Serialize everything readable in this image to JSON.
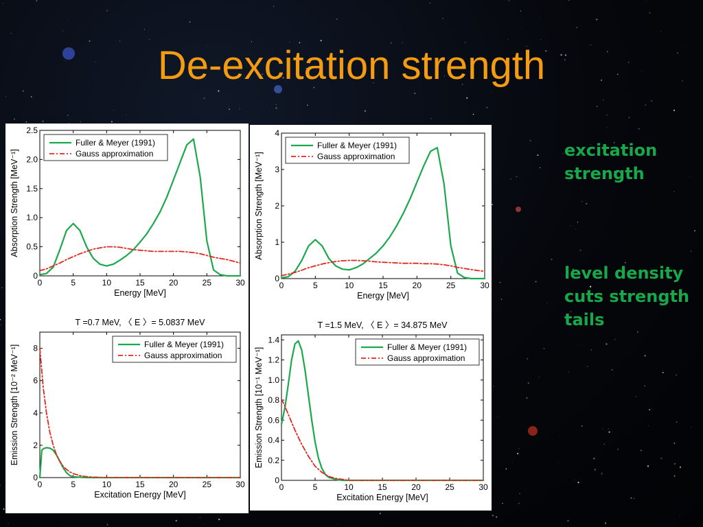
{
  "slide": {
    "title": "De-excitation strength",
    "notes": [
      "excitation\nstrength",
      "level density\ncuts strength\ntails"
    ]
  },
  "colors": {
    "title": "#f39c12",
    "notes": "#16a84a",
    "fuller": "#1aa84c",
    "gauss": "#e3261d"
  },
  "chart_data": [
    {
      "type": "line",
      "xlabel": "Energy [MeV]",
      "ylabel": "Absorption Strength [MeV⁻¹]",
      "xlim": [
        0,
        30
      ],
      "ylim": [
        0,
        2.5
      ],
      "xticks": [
        0,
        5,
        10,
        15,
        20,
        25,
        30
      ],
      "yticks": [
        0,
        0.5,
        1.0,
        1.5,
        2.0,
        2.5
      ],
      "yticklabels": [
        "0",
        "0.5",
        "1.0",
        "1.5",
        "2.0",
        "2.5"
      ],
      "legend": "top-left",
      "series": [
        {
          "name": "Fuller & Meyer (1991)",
          "style": "solid",
          "x": [
            0,
            1,
            2,
            3,
            4,
            5,
            6,
            7,
            8,
            9,
            10,
            11,
            12,
            13,
            14,
            15,
            16,
            17,
            18,
            19,
            20,
            21,
            22,
            23,
            24,
            25,
            26,
            27,
            28,
            29,
            30
          ],
          "y": [
            0.02,
            0.04,
            0.15,
            0.45,
            0.78,
            0.9,
            0.78,
            0.5,
            0.3,
            0.2,
            0.17,
            0.2,
            0.27,
            0.35,
            0.45,
            0.58,
            0.72,
            0.9,
            1.1,
            1.35,
            1.65,
            1.95,
            2.25,
            2.35,
            1.7,
            0.6,
            0.1,
            0.02,
            0.0,
            0.0,
            0.0
          ]
        },
        {
          "name": "Gauss approximation",
          "style": "dashdot",
          "x": [
            0,
            1,
            2,
            3,
            4,
            5,
            6,
            7,
            8,
            9,
            10,
            11,
            12,
            13,
            14,
            15,
            16,
            17,
            18,
            19,
            20,
            21,
            22,
            23,
            24,
            25,
            26,
            27,
            28,
            29,
            30
          ],
          "y": [
            0.09,
            0.12,
            0.17,
            0.22,
            0.28,
            0.33,
            0.38,
            0.42,
            0.46,
            0.48,
            0.5,
            0.5,
            0.49,
            0.47,
            0.45,
            0.44,
            0.43,
            0.42,
            0.42,
            0.42,
            0.42,
            0.42,
            0.41,
            0.4,
            0.38,
            0.35,
            0.32,
            0.3,
            0.28,
            0.25,
            0.22
          ]
        }
      ]
    },
    {
      "type": "line",
      "xlabel": "Energy [MeV]",
      "ylabel": "Absorption Strength [MeV⁻¹]",
      "xlim": [
        0,
        30
      ],
      "ylim": [
        0,
        4
      ],
      "xticks": [
        0,
        5,
        10,
        15,
        20,
        25,
        30
      ],
      "yticks": [
        0,
        1,
        2,
        3,
        4
      ],
      "yticklabels": [
        "0",
        "1",
        "2",
        "3",
        "4"
      ],
      "legend": "top-left",
      "series": [
        {
          "name": "Fuller & Meyer (1991)",
          "style": "solid",
          "x": [
            0,
            1,
            2,
            3,
            4,
            5,
            6,
            7,
            8,
            9,
            10,
            11,
            12,
            13,
            14,
            15,
            16,
            17,
            18,
            19,
            20,
            21,
            22,
            23,
            24,
            25,
            26,
            27,
            28,
            29,
            30
          ],
          "y": [
            0.02,
            0.05,
            0.2,
            0.5,
            0.9,
            1.07,
            0.9,
            0.55,
            0.35,
            0.26,
            0.24,
            0.3,
            0.4,
            0.55,
            0.7,
            0.9,
            1.15,
            1.45,
            1.8,
            2.2,
            2.65,
            3.1,
            3.5,
            3.6,
            2.6,
            0.9,
            0.15,
            0.03,
            0.0,
            0.0,
            0.0
          ]
        },
        {
          "name": "Gauss approximation",
          "style": "dashdot",
          "x": [
            0,
            1,
            2,
            3,
            4,
            5,
            6,
            7,
            8,
            9,
            10,
            11,
            12,
            13,
            14,
            15,
            16,
            17,
            18,
            19,
            20,
            21,
            22,
            23,
            24,
            25,
            26,
            27,
            28,
            29,
            30
          ],
          "y": [
            0.08,
            0.12,
            0.17,
            0.23,
            0.3,
            0.35,
            0.4,
            0.44,
            0.47,
            0.49,
            0.5,
            0.5,
            0.49,
            0.48,
            0.46,
            0.45,
            0.44,
            0.43,
            0.42,
            0.42,
            0.42,
            0.41,
            0.41,
            0.4,
            0.38,
            0.35,
            0.31,
            0.28,
            0.25,
            0.22,
            0.2
          ]
        }
      ]
    },
    {
      "type": "line",
      "title": "T =0.7 MeV,   〈 E 〉= 5.0837 MeV",
      "xlabel": "Excitation Energy [MeV]",
      "ylabel": "Emission Strength [10⁻² MeV⁻¹]",
      "xlim": [
        0,
        30
      ],
      "ylim": [
        0,
        9
      ],
      "xticks": [
        0,
        5,
        10,
        15,
        20,
        25,
        30
      ],
      "yticks": [
        0,
        2,
        4,
        6,
        8
      ],
      "yticklabels": [
        "0",
        "2",
        "4",
        "6",
        "8"
      ],
      "legend": "top-right",
      "series": [
        {
          "name": "Fuller & Meyer (1991)",
          "style": "solid",
          "x": [
            0,
            0.3,
            0.6,
            1,
            1.5,
            2,
            2.5,
            3,
            3.5,
            4,
            4.5,
            5,
            6,
            7,
            8,
            10,
            15,
            20,
            25,
            30
          ],
          "y": [
            0.0,
            1.7,
            1.8,
            1.85,
            1.82,
            1.7,
            1.4,
            1.0,
            0.6,
            0.3,
            0.12,
            0.05,
            0.02,
            0.0,
            0.0,
            0.0,
            0.0,
            0.0,
            0.0,
            0.0
          ]
        },
        {
          "name": "Gauss approximation",
          "style": "dashdot",
          "x": [
            0,
            0.5,
            1,
            1.5,
            2,
            2.5,
            3,
            3.5,
            4,
            4.5,
            5,
            6,
            7,
            8,
            10,
            15,
            20,
            25,
            30
          ],
          "y": [
            8.0,
            5.6,
            4.0,
            2.8,
            2.0,
            1.4,
            1.0,
            0.7,
            0.5,
            0.35,
            0.25,
            0.12,
            0.06,
            0.03,
            0.0,
            0.0,
            0.0,
            0.0,
            0.0
          ]
        }
      ]
    },
    {
      "type": "line",
      "title": "T =1.5 MeV,   〈 E 〉= 34.875 MeV",
      "xlabel": "Excitation Energy [MeV]",
      "ylabel": "Emission Strength [10⁻¹ MeV⁻¹]",
      "xlim": [
        0,
        30
      ],
      "ylim": [
        0,
        1.45
      ],
      "xticks": [
        0,
        5,
        10,
        15,
        20,
        25,
        30
      ],
      "yticks": [
        0,
        0.2,
        0.4,
        0.6,
        0.8,
        1.0,
        1.2,
        1.4
      ],
      "yticklabels": [
        "0",
        "0.2",
        "0.4",
        "0.6",
        "0.8",
        "1.0",
        "1.2",
        "1.4"
      ],
      "legend": "top-right",
      "series": [
        {
          "name": "Fuller & Meyer (1991)",
          "style": "solid",
          "x": [
            0,
            0.5,
            1,
            1.5,
            2,
            2.5,
            3,
            3.5,
            4,
            4.5,
            5,
            5.5,
            6,
            6.5,
            7,
            8,
            9,
            10,
            15,
            20,
            25,
            30
          ],
          "y": [
            0.56,
            0.72,
            0.95,
            1.2,
            1.36,
            1.39,
            1.3,
            1.1,
            0.85,
            0.6,
            0.38,
            0.22,
            0.12,
            0.06,
            0.03,
            0.01,
            0.0,
            0.0,
            0.0,
            0.0,
            0.0,
            0.0
          ]
        },
        {
          "name": "Gauss approximation",
          "style": "dashdot",
          "x": [
            0,
            0.5,
            1,
            2,
            3,
            4,
            5,
            6,
            7,
            8,
            9,
            10,
            15,
            20,
            25,
            30
          ],
          "y": [
            0.81,
            0.74,
            0.66,
            0.5,
            0.36,
            0.24,
            0.14,
            0.08,
            0.04,
            0.02,
            0.01,
            0.0,
            0.0,
            0.0,
            0.0,
            0.0
          ]
        }
      ]
    }
  ]
}
